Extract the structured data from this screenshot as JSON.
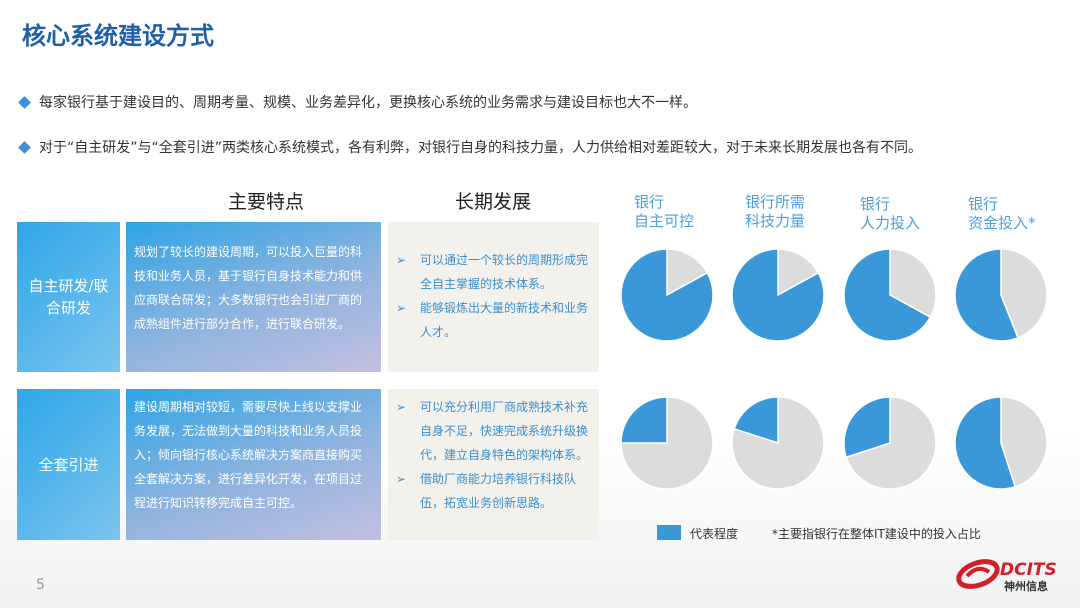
{
  "title": "核心系统建设方式",
  "bullets": [
    "每家银行基于建设目的、周期考量、规模、业务差异化，更换核心系统的业务需求与建设目标也大不一样。",
    "对于“自主研发”与“全套引进”两类核心系统模式，各有利弊，对银行自身的科技力量，人力供给相对差距较大，对于未来长期发展也各有不同。"
  ],
  "table": {
    "headers": [
      "主要特点",
      "长期发展"
    ],
    "rows": [
      {
        "label": "自主研发/联合研发",
        "features": "规划了较长的建设周期，可以投入巨量的科技和业务人员，基于银行自身技术能力和供应商联合研发；大多数银行也会引进厂商的成熟组件进行部分合作，进行联合研发。",
        "development": [
          "可以通过一个较长的周期形成完全自主掌握的技术体系。",
          "能够锻炼出大量的新技术和业务人才。"
        ]
      },
      {
        "label": "全套引进",
        "features": "建设周期相对较短，需要尽快上线以支撑业务发展，无法做到大量的科技和业务人员投入；倾向银行核心系统解决方案商直接购买全套解决方案，进行差异化开发，在项目过程进行知识转移完成自主可控。",
        "development": [
          "可以充分利用厂商成熟技术补充自身不足，快速完成系统升级换代，建立自身特色的架构体系。",
          "借助厂商能力培养银行科技队伍，拓宽业务创新思路。"
        ]
      }
    ]
  },
  "chart_data": {
    "type": "pie",
    "columns": [
      [
        "银行",
        "自主可控"
      ],
      [
        "银行所需",
        "科技力量"
      ],
      [
        "银行",
        "人力投入"
      ],
      [
        "银行",
        "资金投入*"
      ]
    ],
    "rows": [
      "自主研发/联合研发",
      "全套引进"
    ],
    "values": [
      [
        0.83,
        0.83,
        0.67,
        0.56
      ],
      [
        0.25,
        0.2,
        0.3,
        0.55
      ]
    ],
    "colors": {
      "represent": "#3a97d8",
      "rest": "#dcdcdc"
    },
    "legend": "代表程度",
    "footnote": "*主要指银行在整体IT建设中的投入占比"
  },
  "page_number": "5",
  "logo": {
    "text": "DCITS",
    "subtext": "神州信息",
    "color": "#d2202b"
  }
}
